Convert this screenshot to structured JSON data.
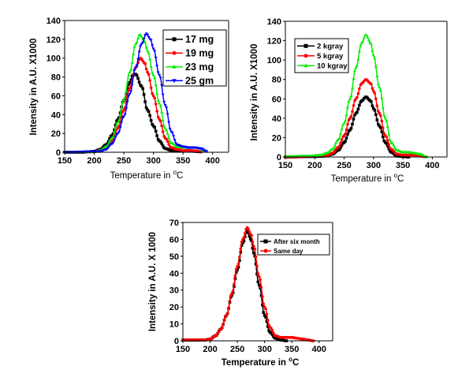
{
  "chart_data": [
    {
      "type": "scatter",
      "xlabel": "Temperature in °C",
      "xlabel_parts": {
        "text": "Temperature in ",
        "sup": "o",
        "unit": "C"
      },
      "ylabel": "Intensity in A.U. X1000",
      "xlim": [
        150,
        427
      ],
      "ylim": [
        0,
        140
      ],
      "xticks": [
        150,
        200,
        250,
        300,
        350,
        400
      ],
      "yticks": [
        0,
        20,
        40,
        60,
        80,
        100,
        120,
        140
      ],
      "grid": false,
      "legend_position": "top-right",
      "series": [
        {
          "name": "17 mg",
          "color": "#000000",
          "marker": "square",
          "x": [
            150,
            180,
            190,
            200,
            210,
            220,
            230,
            240,
            250,
            260,
            265,
            270,
            280,
            290,
            300,
            310,
            320,
            330,
            340,
            350,
            360,
            370,
            380
          ],
          "y": [
            0,
            0,
            0.5,
            1,
            3,
            8,
            18,
            35,
            55,
            74,
            82,
            83,
            70,
            45,
            28,
            12,
            4,
            2,
            1.5,
            1.5,
            1.5,
            1,
            0.5
          ]
        },
        {
          "name": "19 mg",
          "color": "#ff0000",
          "marker": "circle",
          "x": [
            150,
            200,
            210,
            220,
            230,
            240,
            250,
            260,
            270,
            278,
            285,
            290,
            300,
            310,
            320,
            330,
            340,
            350,
            360,
            370,
            380
          ],
          "y": [
            0,
            0.5,
            2,
            5,
            12,
            26,
            45,
            68,
            90,
            100,
            95,
            85,
            60,
            35,
            15,
            5,
            3,
            2,
            2,
            1.5,
            0.5
          ]
        },
        {
          "name": "23 mg",
          "color": "#00ee00",
          "marker": "triangle-up",
          "x": [
            150,
            200,
            210,
            220,
            230,
            240,
            250,
            260,
            270,
            277,
            285,
            290,
            300,
            310,
            320,
            330,
            340,
            350,
            360,
            370,
            380,
            385
          ],
          "y": [
            0,
            0.5,
            2,
            6,
            15,
            32,
            55,
            85,
            115,
            125,
            118,
            108,
            82,
            52,
            25,
            10,
            6,
            5,
            5,
            5,
            4,
            1
          ]
        },
        {
          "name": "25 gm",
          "color": "#0000ff",
          "marker": "triangle-down",
          "x": [
            150,
            210,
            220,
            230,
            240,
            250,
            260,
            270,
            280,
            288,
            295,
            300,
            310,
            320,
            330,
            340,
            350,
            360,
            370,
            380,
            390
          ],
          "y": [
            0,
            1,
            3,
            9,
            20,
            38,
            62,
            90,
            115,
            126,
            120,
            110,
            82,
            50,
            22,
            8,
            6,
            5,
            5,
            4,
            1
          ]
        }
      ]
    },
    {
      "type": "scatter",
      "xlabel": "Temperature in °C",
      "xlabel_parts": {
        "text": "Temperature in ",
        "sup": "o",
        "unit": "C"
      },
      "ylabel": "Intensity in A.U. X1000",
      "xlim": [
        150,
        425
      ],
      "ylim": [
        0,
        140
      ],
      "xticks": [
        150,
        200,
        250,
        300,
        350,
        400
      ],
      "yticks": [
        0,
        20,
        40,
        60,
        80,
        100,
        120,
        140
      ],
      "grid": false,
      "legend_position": "top-left",
      "series": [
        {
          "name": "2  kgray",
          "color": "#000000",
          "marker": "square",
          "x": [
            150,
            200,
            220,
            230,
            240,
            250,
            260,
            270,
            280,
            287,
            295,
            300,
            310,
            320,
            330,
            340,
            350,
            360
          ],
          "y": [
            0,
            0.5,
            1,
            3,
            7,
            15,
            28,
            45,
            58,
            62,
            58,
            50,
            32,
            15,
            5,
            1,
            0.5,
            0
          ]
        },
        {
          "name": "5  kgray",
          "color": "#ff0000",
          "marker": "circle",
          "x": [
            150,
            220,
            230,
            240,
            250,
            260,
            270,
            280,
            287,
            295,
            300,
            310,
            320,
            330,
            340,
            350,
            360,
            370,
            380,
            390
          ],
          "y": [
            0,
            1,
            4,
            10,
            22,
            40,
            60,
            76,
            80,
            76,
            68,
            45,
            22,
            8,
            3,
            2,
            2,
            2,
            1,
            0
          ]
        },
        {
          "name": "10 kgray",
          "color": "#00ee00",
          "marker": "triangle-up",
          "x": [
            150,
            190,
            210,
            220,
            230,
            240,
            250,
            260,
            270,
            280,
            287,
            295,
            300,
            310,
            320,
            330,
            340,
            350,
            360,
            370,
            380,
            390
          ],
          "y": [
            0.5,
            1,
            2,
            4,
            8,
            18,
            35,
            60,
            92,
            118,
            126,
            118,
            105,
            72,
            40,
            15,
            7,
            5,
            5,
            4,
            3,
            0
          ]
        }
      ]
    },
    {
      "type": "scatter",
      "xlabel": "Temperature in °C",
      "xlabel_parts": {
        "text": "Temperature in ",
        "sup": "o",
        "unit": "C"
      },
      "ylabel": "Intensity in A.U. X  1000",
      "xlim": [
        150,
        425
      ],
      "ylim": [
        0,
        70
      ],
      "xticks": [
        150,
        200,
        250,
        300,
        350,
        400
      ],
      "yticks": [
        0,
        10,
        20,
        30,
        40,
        50,
        60,
        70
      ],
      "grid": false,
      "legend_position": "top-right",
      "series": [
        {
          "name": "After six month",
          "color": "#000000",
          "marker": "square",
          "x": [
            150,
            190,
            200,
            210,
            220,
            230,
            240,
            250,
            260,
            268,
            275,
            280,
            290,
            300,
            310,
            320,
            330,
            340
          ],
          "y": [
            0.5,
            0.5,
            1,
            3,
            7,
            15,
            27,
            42,
            58,
            65,
            60,
            52,
            33,
            15,
            5,
            1.5,
            0.5,
            0
          ]
        },
        {
          "name": "Same day",
          "color": "#ff0000",
          "marker": "circle",
          "x": [
            150,
            190,
            200,
            210,
            220,
            230,
            240,
            250,
            260,
            268,
            275,
            280,
            290,
            300,
            310,
            320,
            330,
            340,
            350,
            360,
            370,
            380,
            390
          ],
          "y": [
            0.5,
            0.5,
            1,
            3,
            7,
            15,
            28,
            44,
            60,
            67,
            63,
            56,
            38,
            20,
            8,
            3,
            2,
            2,
            2,
            1.5,
            1,
            0.5,
            0
          ]
        }
      ]
    }
  ]
}
